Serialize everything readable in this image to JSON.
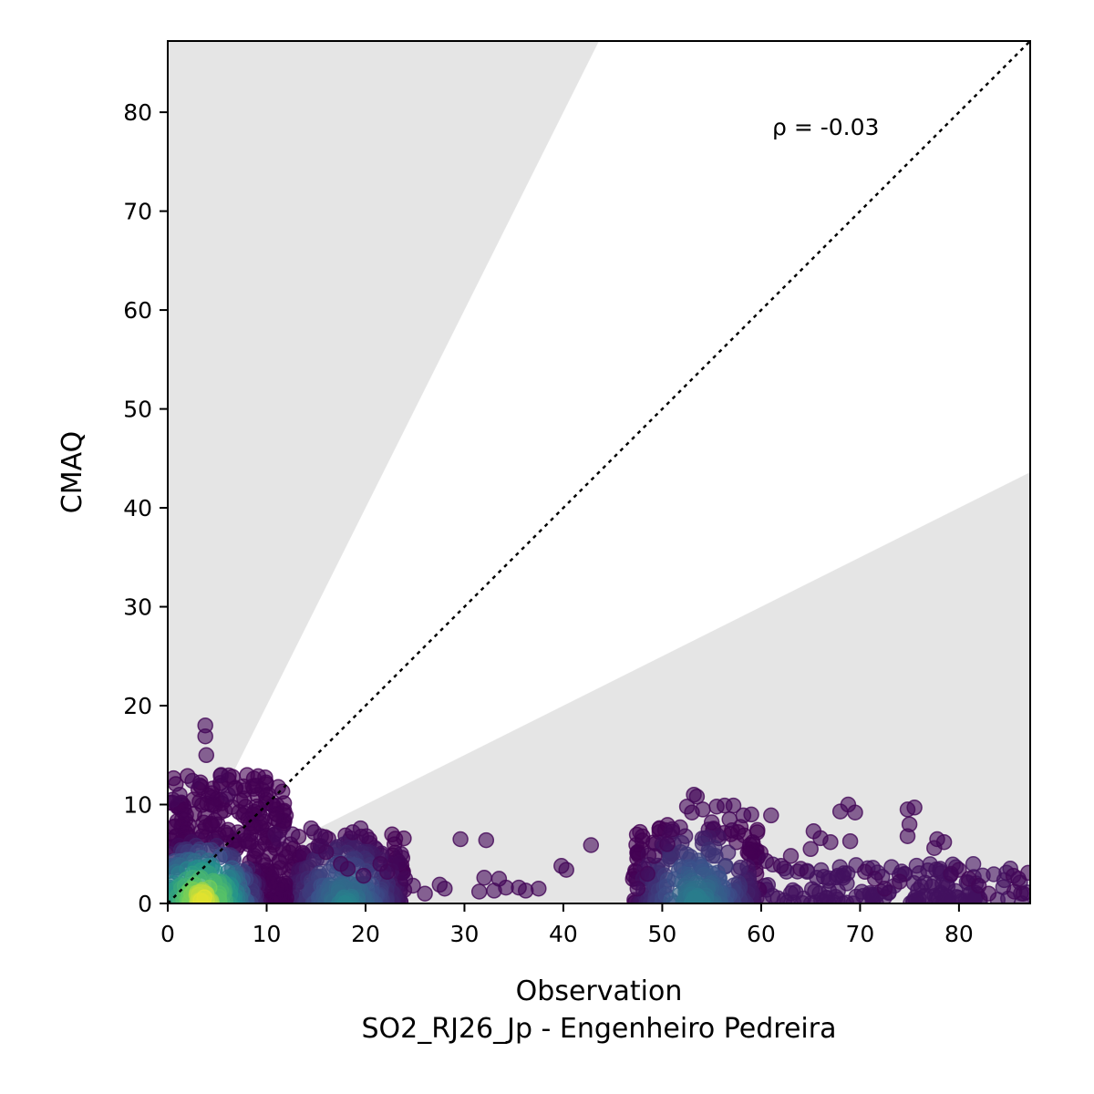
{
  "chart_data": {
    "type": "scatter",
    "xlabel": "Observation",
    "xlabel_sub": "SO2_RJ26_Jp - Engenheiro Pedreira",
    "ylabel": "CMAQ",
    "annotation": "ρ = -0.03",
    "xlim": [
      0,
      87.2
    ],
    "ylim": [
      0,
      87.2
    ],
    "x_ticks": [
      0,
      10,
      20,
      30,
      40,
      50,
      60,
      70,
      80
    ],
    "y_ticks": [
      0,
      10,
      20,
      30,
      40,
      50,
      60,
      70,
      80
    ],
    "identity_line": true,
    "shaded_band": "outside factor-of-2 (y > 2x or y < x/2)",
    "shaded_color": "#e5e5e5",
    "point_colormap": "viridis",
    "point_alpha": 0.6,
    "clusters": [
      {
        "x_range": [
          0,
          12
        ],
        "y_range": [
          0,
          13
        ],
        "density": "high"
      },
      {
        "x_range": [
          12,
          24
        ],
        "y_range": [
          0,
          7
        ],
        "density": "medium"
      },
      {
        "x_range": [
          47,
          60
        ],
        "y_range": [
          0,
          8
        ],
        "density": "medium"
      },
      {
        "x_range": [
          60,
          87
        ],
        "y_range": [
          0,
          4
        ],
        "density": "low"
      }
    ],
    "points": [
      [
        3.8,
        18.0
      ],
      [
        3.8,
        16.9
      ],
      [
        3.9,
        15.0
      ],
      [
        2.5,
        12.4
      ],
      [
        6.1,
        11.0
      ],
      [
        5.4,
        13.0
      ],
      [
        1.2,
        11.0
      ],
      [
        0.5,
        10.5
      ],
      [
        10.9,
        7.0
      ],
      [
        11.2,
        6.5
      ],
      [
        12.6,
        7.0
      ],
      [
        14.5,
        7.6
      ],
      [
        14.8,
        7.2
      ],
      [
        15.5,
        6.8
      ],
      [
        19.5,
        7.6
      ],
      [
        20.1,
        6.8
      ],
      [
        18.7,
        7.2
      ],
      [
        15.2,
        5.8
      ],
      [
        16.0,
        5.2
      ],
      [
        17.5,
        4.0
      ],
      [
        18.2,
        3.5
      ],
      [
        19.8,
        2.8
      ],
      [
        21.5,
        4.0
      ],
      [
        22.2,
        3.2
      ],
      [
        23.6,
        5.0
      ],
      [
        23.4,
        4.1
      ],
      [
        24.0,
        2.5
      ],
      [
        24.8,
        1.8
      ],
      [
        26.0,
        1.0
      ],
      [
        27.5,
        1.9
      ],
      [
        28.0,
        1.5
      ],
      [
        29.6,
        6.5
      ],
      [
        32.2,
        6.4
      ],
      [
        32.0,
        2.6
      ],
      [
        33.5,
        2.5
      ],
      [
        34.2,
        1.6
      ],
      [
        35.5,
        1.6
      ],
      [
        36.2,
        1.3
      ],
      [
        37.5,
        1.5
      ],
      [
        39.8,
        3.8
      ],
      [
        40.3,
        3.4
      ],
      [
        42.8,
        5.9
      ],
      [
        31.5,
        1.2
      ],
      [
        33.0,
        1.3
      ],
      [
        47.5,
        1.5
      ],
      [
        48.5,
        3.0
      ],
      [
        49.2,
        4.8
      ],
      [
        50.5,
        6.0
      ],
      [
        51.0,
        7.5
      ],
      [
        51.8,
        7.7
      ],
      [
        52.5,
        9.8
      ],
      [
        53.2,
        11.0
      ],
      [
        53.5,
        10.8
      ],
      [
        53.0,
        9.2
      ],
      [
        54.1,
        9.5
      ],
      [
        55.5,
        9.8
      ],
      [
        56.3,
        9.9
      ],
      [
        57.2,
        9.9
      ],
      [
        58.2,
        8.9
      ],
      [
        59.0,
        9.0
      ],
      [
        61.0,
        8.9
      ],
      [
        55.0,
        8.2
      ],
      [
        56.8,
        8.5
      ],
      [
        60.5,
        4.3
      ],
      [
        62.0,
        3.8
      ],
      [
        63.0,
        4.8
      ],
      [
        64.0,
        3.5
      ],
      [
        65.0,
        5.5
      ],
      [
        66.0,
        6.6
      ],
      [
        65.3,
        7.3
      ],
      [
        67.0,
        6.2
      ],
      [
        68.0,
        9.3
      ],
      [
        68.8,
        10.0
      ],
      [
        69.5,
        9.2
      ],
      [
        69.0,
        6.3
      ],
      [
        70.5,
        3.2
      ],
      [
        71.5,
        2.5
      ],
      [
        72.5,
        1.5
      ],
      [
        74.0,
        2.2
      ],
      [
        74.8,
        9.5
      ],
      [
        75.5,
        9.7
      ],
      [
        75.0,
        8.0
      ],
      [
        74.8,
        6.8
      ],
      [
        77.8,
        6.5
      ],
      [
        78.5,
        6.2
      ],
      [
        77.5,
        5.6
      ],
      [
        79.2,
        3.0
      ],
      [
        80.0,
        3.4
      ],
      [
        81.0,
        2.5
      ],
      [
        82.0,
        1.8
      ],
      [
        83.0,
        1.0
      ],
      [
        85.5,
        2.8
      ],
      [
        86.0,
        2.5
      ],
      [
        87.0,
        3.1
      ],
      [
        86.5,
        1.0
      ],
      [
        85.6,
        1.2
      ]
    ]
  },
  "colors": {
    "band": "#e5e5e5",
    "axis": "#000000",
    "viridis_low": "#440154",
    "viridis_mid": "#21918c",
    "viridis_high": "#fde725"
  }
}
